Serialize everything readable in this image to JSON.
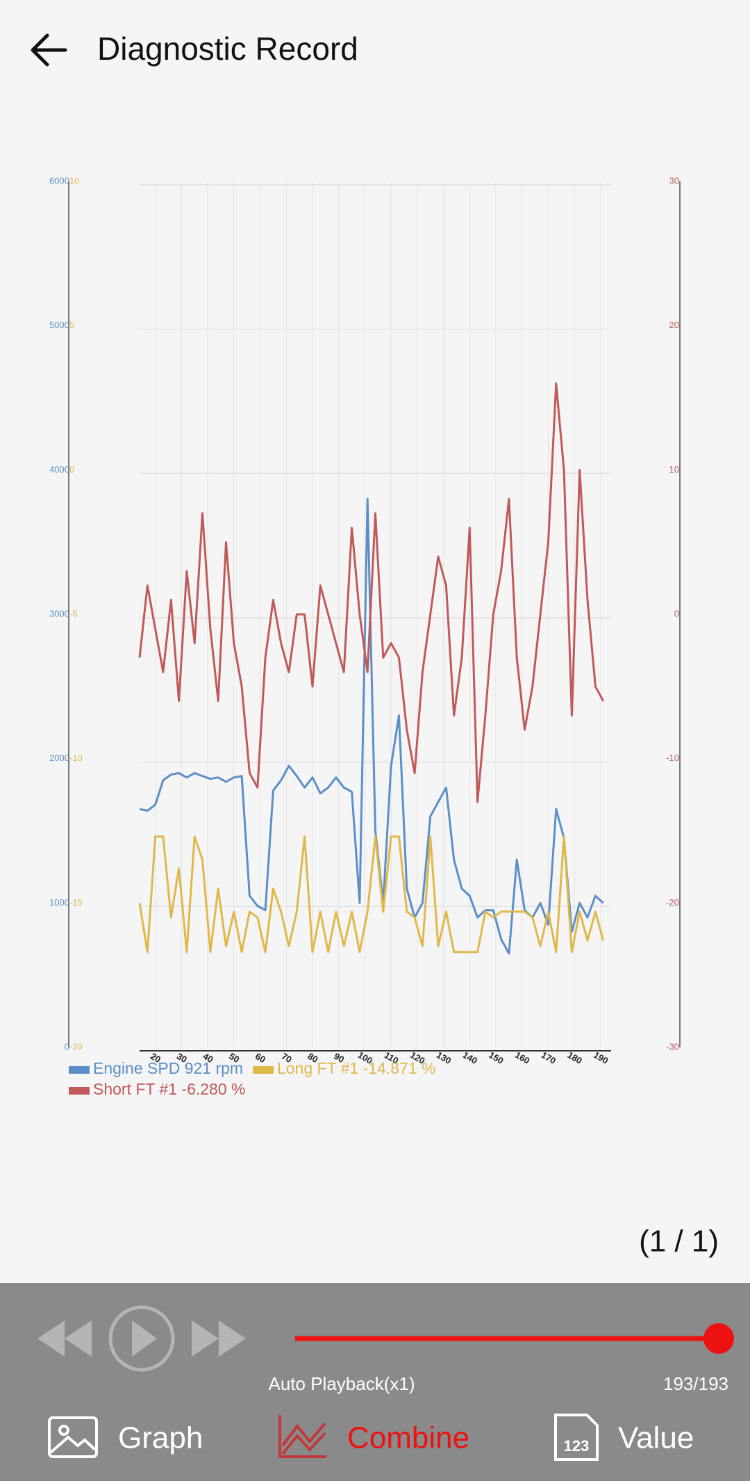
{
  "header": {
    "title": "Diagnostic Record"
  },
  "chart_data": {
    "type": "line",
    "x": [
      14,
      17,
      20,
      23,
      26,
      29,
      32,
      35,
      38,
      41,
      44,
      47,
      50,
      53,
      56,
      59,
      62,
      65,
      68,
      71,
      74,
      77,
      80,
      83,
      86,
      89,
      92,
      95,
      98,
      101,
      104,
      107,
      110,
      113,
      116,
      119,
      122,
      125,
      128,
      131,
      134,
      137,
      140,
      143,
      146,
      149,
      152,
      155,
      158,
      161,
      164,
      167,
      170,
      173,
      176,
      179,
      182,
      185,
      188,
      191
    ],
    "xlim": [
      14,
      194
    ],
    "xticks": [
      20,
      30,
      40,
      50,
      60,
      70,
      80,
      90,
      100,
      110,
      120,
      130,
      140,
      150,
      160,
      170,
      180,
      190
    ],
    "ylim": [
      0,
      6000
    ],
    "yticks": [
      0,
      1000,
      2000,
      3000,
      4000,
      5000,
      6000
    ],
    "y2lim": [
      -30,
      30
    ],
    "y2ticks": [
      -30,
      -20,
      -10,
      0,
      10,
      20,
      30
    ],
    "y3lim": [
      -20,
      10
    ],
    "y3ticks": [
      -20,
      -15,
      -10,
      -5,
      0,
      5,
      10
    ],
    "grid": true,
    "series": [
      {
        "name": "Engine SPD 921 rpm",
        "color": "#5b8fc7",
        "axis": "y",
        "values": [
          1650,
          1640,
          1680,
          1850,
          1890,
          1900,
          1870,
          1900,
          1880,
          1860,
          1870,
          1840,
          1870,
          1880,
          1050,
          980,
          950,
          1780,
          1850,
          1950,
          1880,
          1800,
          1870,
          1760,
          1800,
          1870,
          1800,
          1770,
          1000,
          3800,
          1500,
          1000,
          1950,
          2300,
          1100,
          900,
          1000,
          1600,
          1700,
          1800,
          1300,
          1100,
          1050,
          900,
          950,
          950,
          750,
          650,
          1300,
          950,
          900,
          1000,
          850,
          1650,
          1450,
          800,
          1000,
          900,
          1050,
          1000
        ]
      },
      {
        "name": "Long FT #1 -14.871 %",
        "color": "#e0b84a",
        "axis": "y3",
        "values": [
          -15,
          -16.7,
          -12.7,
          -12.7,
          -15.5,
          -13.8,
          -16.7,
          -12.7,
          -13.5,
          -16.7,
          -14.5,
          -16.5,
          -15.3,
          -16.7,
          -15.3,
          -15.5,
          -16.7,
          -14.5,
          -15.3,
          -16.5,
          -15.3,
          -12.7,
          -16.7,
          -15.3,
          -16.7,
          -15.3,
          -16.5,
          -15.3,
          -16.7,
          -15.3,
          -12.7,
          -15.3,
          -12.7,
          -12.7,
          -15.3,
          -15.5,
          -16.5,
          -12.7,
          -16.5,
          -15.3,
          -16.7,
          -16.7,
          -16.7,
          -16.7,
          -15.3,
          -15.5,
          -15.3,
          -15.3,
          -15.3,
          -15.3,
          -15.5,
          -16.5,
          -15.3,
          -16.7,
          -12.7,
          -16.7,
          -15.3,
          -16.3,
          -15.3,
          -16.3
        ]
      },
      {
        "name": "Short FT #1 -6.280 %",
        "color": "#c0595a",
        "axis": "y2",
        "values": [
          -3,
          2,
          -1,
          -4,
          1,
          -6,
          3,
          -2,
          7,
          -1,
          -6,
          5,
          -2,
          -5,
          -11,
          -12,
          -3,
          1,
          -2,
          -4,
          0,
          0,
          -5,
          2,
          0,
          -2,
          -4,
          6,
          0,
          -4,
          7,
          -3,
          -2,
          -3,
          -8,
          -11,
          -4,
          0,
          4,
          2,
          -7,
          -3,
          6,
          -13,
          -7,
          0,
          3,
          8,
          -3,
          -8,
          -5,
          0,
          5,
          16,
          10,
          -7,
          10,
          1,
          -5,
          -6
        ]
      }
    ]
  },
  "page_indicator": "(1 / 1)",
  "player": {
    "mode": "Auto Playback(x1)",
    "position": "193/193"
  },
  "tabs": [
    {
      "label": "Graph",
      "active": false
    },
    {
      "label": "Combine",
      "active": true
    },
    {
      "label": "Value",
      "active": false,
      "icon_label": "123"
    }
  ]
}
